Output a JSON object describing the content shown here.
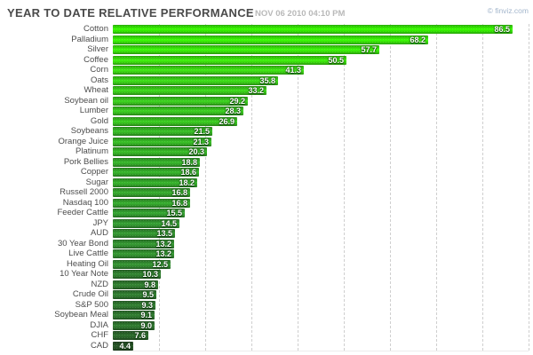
{
  "header": {
    "title": "YEAR TO DATE RELATIVE PERFORMANCE",
    "timestamp": "NOV 06 2010 04:10 PM",
    "brand": "© finviz.com"
  },
  "colors": {
    "title": "#4a4a4a",
    "timestamp": "#b9b9b9",
    "brand": "#a3b6cc",
    "grid": "#cfcfcf",
    "label": "#4d4d4d",
    "background": "#ffffff",
    "bar_bright": "#30d600",
    "bar_dark": "#1e3e1e"
  },
  "chart_data": {
    "type": "bar",
    "orientation": "horizontal",
    "title": "YEAR TO DATE RELATIVE PERFORMANCE",
    "subtitle": "NOV 06 2010 04:10 PM",
    "categories": [
      "Cotton",
      "Palladium",
      "Silver",
      "Coffee",
      "Corn",
      "Oats",
      "Wheat",
      "Soybean oil",
      "Lumber",
      "Gold",
      "Soybeans",
      "Orange Juice",
      "Platinum",
      "Pork Bellies",
      "Copper",
      "Sugar",
      "Russell 2000",
      "Nasdaq 100",
      "Feeder Cattle",
      "JPY",
      "AUD",
      "30 Year Bond",
      "Live Cattle",
      "Heating Oil",
      "10 Year Note",
      "NZD",
      "Crude Oil",
      "S&P 500",
      "Soybean Meal",
      "DJIA",
      "CHF",
      "CAD"
    ],
    "values": [
      86.5,
      68.2,
      57.7,
      50.5,
      41.3,
      35.8,
      33.2,
      29.2,
      28.3,
      26.9,
      21.5,
      21.3,
      20.3,
      18.8,
      18.6,
      18.2,
      16.8,
      16.8,
      15.5,
      14.5,
      13.5,
      13.2,
      13.2,
      12.5,
      10.3,
      9.8,
      9.5,
      9.3,
      9.1,
      9.0,
      7.6,
      4.4
    ],
    "xlabel": "",
    "ylabel": "",
    "xlim": [
      0,
      90
    ],
    "grid": true,
    "grid_step": 10,
    "value_labels": "inside-right",
    "legend": false,
    "color_scale": [
      {
        "value": 0,
        "color": "#1e3e1e"
      },
      {
        "value": 4.4,
        "color": "#224a22"
      },
      {
        "value": 7.6,
        "color": "#265c26"
      },
      {
        "value": 9.0,
        "color": "#2a692a"
      },
      {
        "value": 12.5,
        "color": "#2d7d2b"
      },
      {
        "value": 15,
        "color": "#2e8a2c"
      },
      {
        "value": 18,
        "color": "#2f9626"
      },
      {
        "value": 21,
        "color": "#30a021"
      },
      {
        "value": 27,
        "color": "#32ac1c"
      },
      {
        "value": 35,
        "color": "#34b916"
      },
      {
        "value": 45,
        "color": "#37c60f"
      },
      {
        "value": 60,
        "color": "#34cf08"
      },
      {
        "value": 90,
        "color": "#30d600"
      }
    ]
  }
}
